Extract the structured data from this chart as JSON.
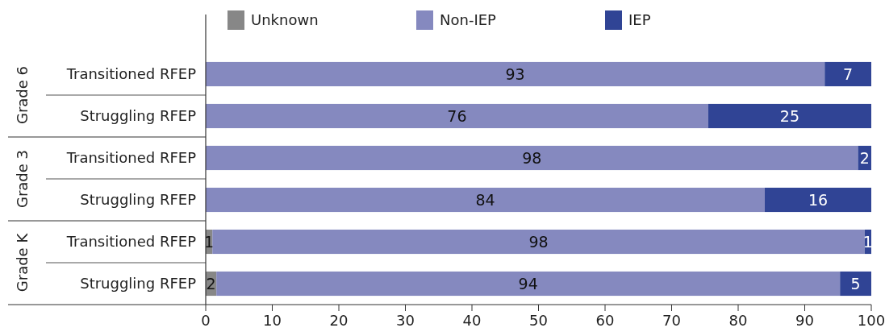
{
  "chart_data": {
    "type": "bar",
    "orientation": "horizontal",
    "stacked": true,
    "categories": [
      "Transitioned RFEP",
      "Struggling RFEP",
      "Transitioned RFEP",
      "Struggling RFEP",
      "Transitioned RFEP",
      "Struggling RFEP"
    ],
    "series": [
      {
        "name": "Unknown",
        "color": "#878787",
        "values": [
          null,
          null,
          null,
          null,
          1,
          1.6
        ],
        "value_labels": [
          null,
          null,
          null,
          null,
          "1",
          "2"
        ]
      },
      {
        "name": "Non-IEP",
        "color": "#8589bf",
        "values": [
          93,
          75.5,
          98,
          84,
          98,
          93.7
        ],
        "value_labels": [
          "93",
          "76",
          "98",
          "84",
          "98",
          "94"
        ]
      },
      {
        "name": "IEP",
        "color": "#304495",
        "values": [
          7,
          24.5,
          2,
          16,
          1,
          4.7
        ],
        "value_labels": [
          "7",
          "25",
          "2",
          "16",
          "1",
          "5"
        ]
      }
    ],
    "annotations": [
      "Grade 6",
      "Grade 3",
      "Grade K"
    ],
    "xlim": [
      0,
      100
    ],
    "xticks": [
      0,
      10,
      20,
      30,
      40,
      50,
      60,
      70,
      80,
      90,
      100
    ],
    "legend": "top",
    "grid": false
  }
}
